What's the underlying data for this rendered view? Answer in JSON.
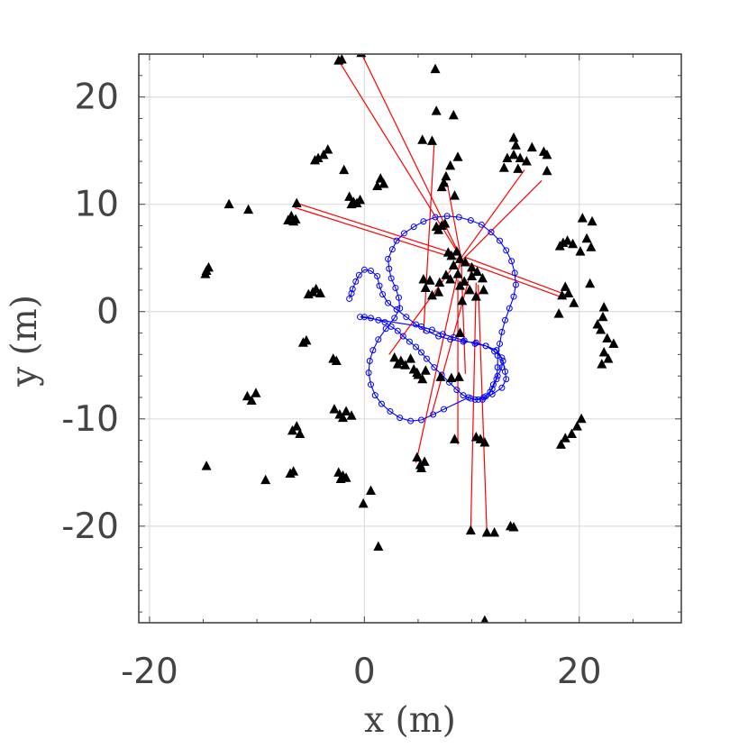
{
  "chart_data": {
    "type": "scatter",
    "title": "",
    "xlabel": "x (m)",
    "ylabel": "y (m)",
    "xlim": [
      -21,
      29.5
    ],
    "ylim": [
      -29,
      24
    ],
    "grid": true,
    "xticks": [
      -20,
      0,
      20
    ],
    "xtick_labels": [
      "-20",
      "0",
      "20"
    ],
    "yticks": [
      20,
      10,
      0,
      -10,
      -20
    ],
    "ytick_labels": [
      "20",
      "10",
      "0",
      "-10",
      "-20"
    ],
    "colors": {
      "landmarks": "#000000",
      "trajectory": "#0000ff",
      "associations": "#ff0000",
      "grid": "#dddddd",
      "axis": "#444444"
    },
    "landmarks": [
      [
        -2.4,
        23.4
      ],
      [
        -2.1,
        23.5
      ],
      [
        -0.3,
        24.1
      ],
      [
        6.6,
        22.6
      ],
      [
        6.7,
        18.7
      ],
      [
        8.3,
        18.3
      ],
      [
        5.4,
        16.0
      ],
      [
        6.3,
        15.9
      ],
      [
        13.9,
        16.2
      ],
      [
        14.1,
        15.5
      ],
      [
        16.7,
        14.9
      ],
      [
        17.0,
        14.6
      ],
      [
        15.6,
        15.3
      ],
      [
        13.3,
        14.3
      ],
      [
        13.9,
        14.6
      ],
      [
        14.5,
        14.3
      ],
      [
        15.1,
        14.0
      ],
      [
        13.0,
        13.4
      ],
      [
        14.3,
        13.3
      ],
      [
        17.0,
        13.1
      ],
      [
        8.7,
        14.4
      ],
      [
        8.0,
        13.6
      ],
      [
        -4.3,
        14.3
      ],
      [
        -3.8,
        14.6
      ],
      [
        -3.4,
        15.1
      ],
      [
        -4.6,
        14.1
      ],
      [
        -1.9,
        13.2
      ],
      [
        -1.4,
        10.7
      ],
      [
        -1.0,
        10.2
      ],
      [
        -0.7,
        10.1
      ],
      [
        -0.4,
        10.4
      ],
      [
        -1.2,
        10.0
      ],
      [
        1.5,
        12.4
      ],
      [
        1.8,
        11.9
      ],
      [
        1.2,
        11.7
      ],
      [
        7.6,
        12.6
      ],
      [
        7.4,
        12.0
      ],
      [
        7.2,
        11.6
      ],
      [
        8.4,
        10.8
      ],
      [
        -12.6,
        10.0
      ],
      [
        -10.8,
        9.5
      ],
      [
        -7.1,
        8.5
      ],
      [
        -6.8,
        8.9
      ],
      [
        -6.6,
        8.4
      ],
      [
        -6.4,
        8.6
      ],
      [
        -6.3,
        10.1
      ],
      [
        6.7,
        7.9
      ],
      [
        7.2,
        8.0
      ],
      [
        7.5,
        8.2
      ],
      [
        6.9,
        7.6
      ],
      [
        20.3,
        8.7
      ],
      [
        21.2,
        8.4
      ],
      [
        20.7,
        6.8
      ],
      [
        21.1,
        6.0
      ],
      [
        18.2,
        6.1
      ],
      [
        18.5,
        6.4
      ],
      [
        18.9,
        6.6
      ],
      [
        19.4,
        6.3
      ],
      [
        20.1,
        5.6
      ],
      [
        18.7,
        2.3
      ],
      [
        19.0,
        1.7
      ],
      [
        18.4,
        1.5
      ],
      [
        19.5,
        0.8
      ],
      [
        21.0,
        2.6
      ],
      [
        18.1,
        -0.2
      ],
      [
        22.3,
        0.4
      ],
      [
        -14.7,
        3.8
      ],
      [
        -14.5,
        4.1
      ],
      [
        -14.8,
        3.5
      ],
      [
        -4.8,
        1.8
      ],
      [
        -5.2,
        1.6
      ],
      [
        -4.5,
        2.1
      ],
      [
        -4.1,
        1.7
      ],
      [
        5.5,
        3.0
      ],
      [
        6.1,
        2.9
      ],
      [
        7.0,
        2.7
      ],
      [
        7.6,
        3.4
      ],
      [
        8.0,
        3.0
      ],
      [
        8.7,
        3.5
      ],
      [
        9.3,
        2.8
      ],
      [
        10.0,
        3.3
      ],
      [
        10.5,
        3.7
      ],
      [
        11.0,
        3.1
      ],
      [
        5.7,
        2.2
      ],
      [
        6.9,
        1.8
      ],
      [
        8.9,
        2.4
      ],
      [
        9.8,
        2.0
      ],
      [
        10.4,
        1.4
      ],
      [
        11.1,
        2.0
      ],
      [
        6.3,
        1.5
      ],
      [
        9.1,
        1.0
      ],
      [
        8.1,
        5.2
      ],
      [
        8.6,
        5.6
      ],
      [
        8.9,
        4.9
      ],
      [
        9.4,
        4.6
      ],
      [
        10.0,
        4.1
      ],
      [
        8.3,
        4.3
      ],
      [
        7.8,
        5.5
      ],
      [
        -5.7,
        -2.9
      ],
      [
        -5.4,
        -2.7
      ],
      [
        -2.9,
        -4.4
      ],
      [
        -2.6,
        -4.6
      ],
      [
        -2.3,
        -9.6
      ],
      [
        -2.0,
        -9.9
      ],
      [
        -1.7,
        -9.3
      ],
      [
        -1.2,
        -9.7
      ],
      [
        -2.8,
        -9.1
      ],
      [
        2.8,
        -4.3
      ],
      [
        3.1,
        -4.9
      ],
      [
        3.4,
        -4.6
      ],
      [
        3.8,
        -5.0
      ],
      [
        4.3,
        -4.4
      ],
      [
        4.6,
        -5.4
      ],
      [
        5.0,
        -5.9
      ],
      [
        5.4,
        -6.3
      ],
      [
        4.9,
        -5.7
      ],
      [
        5.7,
        -5.5
      ],
      [
        7.1,
        -6.1
      ],
      [
        8.1,
        -6.2
      ],
      [
        8.8,
        -6.1
      ],
      [
        8.9,
        -2.0
      ],
      [
        10.4,
        -11.7
      ],
      [
        10.8,
        -11.9
      ],
      [
        11.2,
        -12.2
      ],
      [
        8.4,
        -11.9
      ],
      [
        -10.9,
        -7.9
      ],
      [
        -10.5,
        -8.3
      ],
      [
        -10.1,
        -7.6
      ],
      [
        -6.3,
        -10.7
      ],
      [
        -6.7,
        -11.1
      ],
      [
        -6.0,
        -11.4
      ],
      [
        4.9,
        -13.6
      ],
      [
        5.2,
        -14.3
      ],
      [
        5.6,
        -14.0
      ],
      [
        5.3,
        -14.6
      ],
      [
        -14.7,
        -14.4
      ],
      [
        -9.2,
        -15.7
      ],
      [
        -6.9,
        -15.1
      ],
      [
        -6.6,
        -14.9
      ],
      [
        -2.4,
        -15.0
      ],
      [
        -2.0,
        -15.3
      ],
      [
        -1.7,
        -15.5
      ],
      [
        -2.2,
        -15.6
      ],
      [
        0.6,
        -16.7
      ],
      [
        -0.1,
        -17.9
      ],
      [
        18.3,
        -12.4
      ],
      [
        18.7,
        -11.8
      ],
      [
        19.3,
        -11.4
      ],
      [
        19.8,
        -10.7
      ],
      [
        20.2,
        -10.0
      ],
      [
        21.7,
        -1.2
      ],
      [
        22.0,
        -1.7
      ],
      [
        22.6,
        -2.5
      ],
      [
        23.2,
        -3.0
      ],
      [
        22.3,
        -3.8
      ],
      [
        22.7,
        -4.4
      ],
      [
        22.1,
        -4.9
      ],
      [
        22.2,
        -0.5
      ],
      [
        9.9,
        -20.4
      ],
      [
        11.4,
        -20.6
      ],
      [
        12.1,
        -20.6
      ],
      [
        13.6,
        -20.0
      ],
      [
        13.9,
        -20.1
      ],
      [
        1.3,
        -21.9
      ],
      [
        11.2,
        -28.8
      ]
    ],
    "trajectory": [
      [
        -1.4,
        1.2
      ],
      [
        -1.2,
        1.7
      ],
      [
        -1.1,
        2.1
      ],
      [
        -0.8,
        2.8
      ],
      [
        -0.5,
        3.4
      ],
      [
        0.0,
        3.9
      ],
      [
        0.6,
        3.8
      ],
      [
        1.2,
        3.3
      ],
      [
        1.4,
        2.4
      ],
      [
        1.7,
        1.6
      ],
      [
        2.2,
        0.8
      ],
      [
        3.0,
        0.2
      ],
      [
        3.9,
        -0.5
      ],
      [
        4.8,
        -1.2
      ],
      [
        5.8,
        -1.8
      ],
      [
        6.9,
        -2.3
      ],
      [
        8.0,
        -2.6
      ],
      [
        9.2,
        -2.8
      ],
      [
        10.4,
        -2.9
      ],
      [
        11.3,
        -3.2
      ],
      [
        12.1,
        -3.7
      ],
      [
        12.8,
        -4.3
      ],
      [
        12.8,
        -5.2
      ],
      [
        12.4,
        -6.0
      ],
      [
        12.0,
        -6.8
      ],
      [
        11.7,
        -7.5
      ],
      [
        11.1,
        -8.0
      ],
      [
        10.3,
        -8.2
      ],
      [
        9.7,
        -8.0
      ],
      [
        7.4,
        -9.1
      ],
      [
        6.4,
        -9.6
      ],
      [
        5.3,
        -10.1
      ],
      [
        4.3,
        -10.2
      ],
      [
        3.3,
        -9.9
      ],
      [
        2.4,
        -9.3
      ],
      [
        1.6,
        -8.6
      ],
      [
        1.0,
        -7.8
      ],
      [
        0.6,
        -6.8
      ],
      [
        0.4,
        -5.7
      ],
      [
        0.5,
        -4.6
      ],
      [
        0.8,
        -3.6
      ],
      [
        1.3,
        -2.6
      ],
      [
        2.0,
        -1.6
      ],
      [
        2.8,
        -0.6
      ],
      [
        3.3,
        0.3
      ],
      [
        3.2,
        1.3
      ],
      [
        2.9,
        2.2
      ],
      [
        2.5,
        3.1
      ],
      [
        2.3,
        4.0
      ],
      [
        2.2,
        4.9
      ],
      [
        2.6,
        5.8
      ],
      [
        3.0,
        6.6
      ],
      [
        3.7,
        7.3
      ],
      [
        4.6,
        7.9
      ],
      [
        5.5,
        8.4
      ],
      [
        6.6,
        8.8
      ],
      [
        7.7,
        8.9
      ],
      [
        8.8,
        8.8
      ],
      [
        9.9,
        8.5
      ],
      [
        10.9,
        8.1
      ],
      [
        11.8,
        7.4
      ],
      [
        12.6,
        6.6
      ],
      [
        13.2,
        5.7
      ],
      [
        13.7,
        4.7
      ],
      [
        14.0,
        3.6
      ],
      [
        14.1,
        2.5
      ],
      [
        13.9,
        1.4
      ],
      [
        13.5,
        0.3
      ],
      [
        13.1,
        -0.8
      ],
      [
        12.8,
        -1.9
      ],
      [
        12.6,
        -3.0
      ],
      [
        12.4,
        -4.1
      ],
      [
        12.4,
        -5.2
      ],
      [
        12.3,
        -6.3
      ],
      [
        11.9,
        -7.2
      ],
      [
        11.3,
        -7.9
      ],
      [
        10.6,
        -8.2
      ],
      [
        9.9,
        -8.1
      ],
      [
        9.2,
        -7.8
      ],
      [
        8.6,
        -7.3
      ],
      [
        7.9,
        -6.6
      ],
      [
        7.2,
        -5.9
      ],
      [
        6.5,
        -5.2
      ],
      [
        5.8,
        -4.4
      ],
      [
        5.3,
        -3.8
      ],
      [
        4.8,
        -3.3
      ],
      [
        4.2,
        -2.8
      ],
      [
        3.6,
        -2.3
      ],
      [
        3.1,
        -1.8
      ],
      [
        2.5,
        -1.4
      ],
      [
        1.9,
        -1.0
      ],
      [
        1.3,
        -0.8
      ],
      [
        0.6,
        -0.6
      ],
      [
        0.0,
        -0.5
      ],
      [
        -0.4,
        -0.5
      ],
      [
        5.3,
        -1.4
      ],
      [
        6.3,
        -1.7
      ],
      [
        7.3,
        -2.1
      ],
      [
        8.3,
        -2.4
      ],
      [
        9.3,
        -2.7
      ],
      [
        10.3,
        -3.0
      ],
      [
        11.3,
        -3.2
      ],
      [
        12.3,
        -3.6
      ],
      [
        12.9,
        -4.6
      ],
      [
        13.1,
        -5.6
      ],
      [
        13.2,
        -6.3
      ],
      [
        12.8,
        -7.1
      ],
      [
        11.9,
        -7.7
      ],
      [
        11.0,
        -8.2
      ]
    ],
    "associations": [
      [
        [
          9.0,
          5.0
        ],
        [
          -2.4,
          23.4
        ]
      ],
      [
        [
          9.0,
          5.0
        ],
        [
          -0.3,
          24.1
        ]
      ],
      [
        [
          8.7,
          5.3
        ],
        [
          -6.3,
          10.1
        ]
      ],
      [
        [
          8.7,
          4.9
        ],
        [
          -6.5,
          9.7
        ]
      ],
      [
        [
          9.3,
          5.1
        ],
        [
          18.7,
          1.6
        ]
      ],
      [
        [
          9.1,
          4.7
        ],
        [
          18.5,
          1.3
        ]
      ],
      [
        [
          9.2,
          4.9
        ],
        [
          16.5,
          12.2
        ]
      ],
      [
        [
          9.0,
          5.0
        ],
        [
          14.9,
          13.2
        ]
      ],
      [
        [
          9.0,
          5.0
        ],
        [
          7.7,
          12.0
        ]
      ],
      [
        [
          9.0,
          5.2
        ],
        [
          2.3,
          -4.0
        ]
      ],
      [
        [
          9.0,
          5.0
        ],
        [
          4.8,
          -14.1
        ]
      ],
      [
        [
          9.0,
          5.0
        ],
        [
          9.4,
          -5.8
        ]
      ],
      [
        [
          6.5,
          15.7
        ],
        [
          5.5,
          -2.0
        ]
      ],
      [
        [
          10.1,
          4.4
        ],
        [
          6.2,
          -9.8
        ]
      ],
      [
        [
          10.4,
          2.7
        ],
        [
          9.9,
          -20.4
        ]
      ],
      [
        [
          10.6,
          2.5
        ],
        [
          11.4,
          -20.6
        ]
      ],
      [
        [
          8.7,
          3.0
        ],
        [
          8.7,
          -12.4
        ]
      ]
    ]
  }
}
